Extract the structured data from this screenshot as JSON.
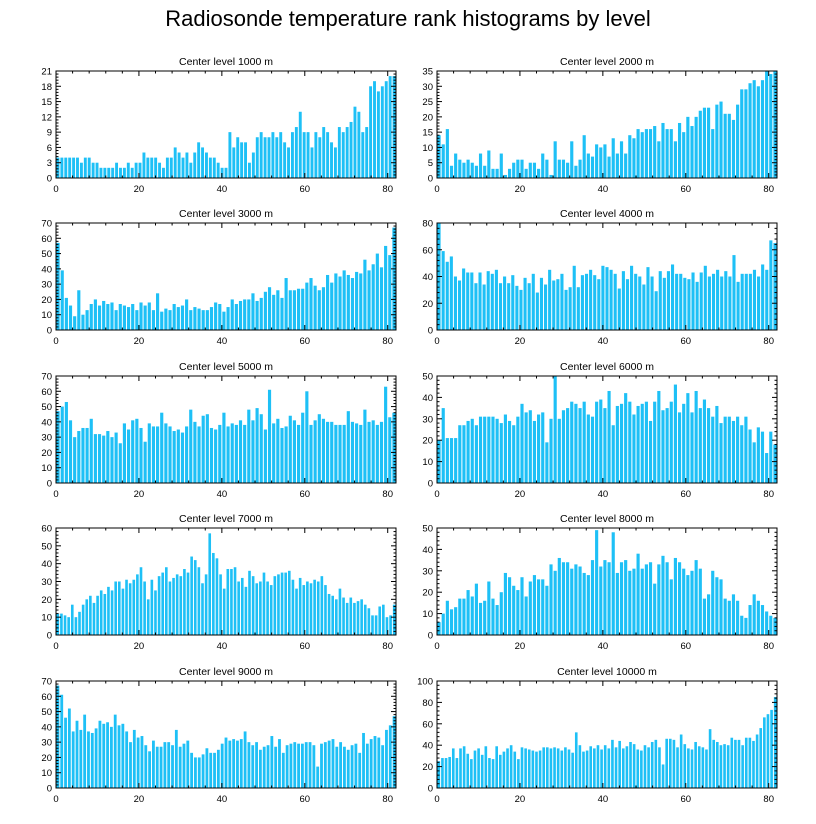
{
  "figure": {
    "title": "Radiosonde temperature rank histograms by level",
    "bar_color": "#1ec0f6",
    "frame_color": "#000000"
  },
  "chart_data": [
    {
      "type": "bar",
      "title": "Center level 1000 m",
      "xlim": [
        0,
        82
      ],
      "xticks": [
        0,
        20,
        40,
        60,
        80
      ],
      "ylim": [
        0,
        21
      ],
      "yticks": [
        0,
        3,
        6,
        9,
        12,
        15,
        18,
        21
      ],
      "values": [
        4,
        4,
        4,
        4,
        4,
        4,
        3,
        4,
        4,
        3,
        3,
        2,
        2,
        2,
        2,
        3,
        2,
        2,
        3,
        2,
        3,
        3,
        5,
        4,
        4,
        4,
        3,
        2,
        4,
        4,
        6,
        5,
        4,
        5,
        3,
        5,
        7,
        6,
        5,
        4,
        4,
        3,
        2,
        2,
        9,
        6,
        8,
        7,
        7,
        3,
        5,
        8,
        9,
        8,
        8,
        9,
        8,
        9,
        7,
        6,
        9,
        10,
        13,
        9,
        9,
        6,
        9,
        8,
        10,
        9,
        7,
        6,
        10,
        9,
        10,
        11,
        14,
        13,
        9,
        10,
        18,
        19,
        17,
        18,
        19,
        20,
        20
      ]
    },
    {
      "type": "bar",
      "title": "Center level 2000 m",
      "xlim": [
        0,
        82
      ],
      "xticks": [
        0,
        20,
        40,
        60,
        80
      ],
      "ylim": [
        0,
        35
      ],
      "yticks": [
        0,
        5,
        10,
        15,
        20,
        25,
        30,
        35
      ],
      "values": [
        14,
        11,
        16,
        4,
        8,
        6,
        5,
        6,
        5,
        4,
        8,
        4,
        9,
        3,
        3,
        8,
        1,
        3,
        5,
        6,
        6,
        3,
        5,
        5,
        3,
        8,
        6,
        1,
        12,
        6,
        6,
        5,
        12,
        4,
        6,
        14,
        8,
        7,
        11,
        10,
        11,
        7,
        13,
        8,
        12,
        8,
        14,
        13,
        16,
        15,
        16,
        16,
        17,
        12,
        18,
        16,
        16,
        12,
        18,
        15,
        20,
        17,
        20,
        22,
        23,
        23,
        16,
        24,
        25,
        21,
        21,
        19,
        24,
        29,
        29,
        31,
        32,
        30,
        32,
        35,
        34,
        35
      ]
    },
    {
      "type": "bar",
      "title": "Center level 3000 m",
      "xlim": [
        0,
        82
      ],
      "xticks": [
        0,
        20,
        40,
        60,
        80
      ],
      "ylim": [
        0,
        70
      ],
      "yticks": [
        0,
        10,
        20,
        30,
        40,
        50,
        60,
        70
      ],
      "values": [
        57,
        39,
        21,
        16,
        9,
        26,
        10,
        13,
        17,
        20,
        16,
        19,
        17,
        18,
        13,
        17,
        16,
        15,
        17,
        13,
        18,
        16,
        18,
        13,
        24,
        12,
        14,
        13,
        17,
        15,
        16,
        20,
        13,
        15,
        14,
        13,
        13,
        15,
        18,
        17,
        12,
        15,
        20,
        17,
        19,
        20,
        20,
        24,
        19,
        21,
        25,
        28,
        23,
        26,
        21,
        34,
        26,
        26,
        27,
        27,
        31,
        34,
        29,
        26,
        28,
        36,
        31,
        37,
        35,
        39,
        36,
        34,
        38,
        37,
        46,
        39,
        43,
        50,
        41,
        55,
        49,
        67
      ]
    },
    {
      "type": "bar",
      "title": "Center level 4000 m",
      "xlim": [
        0,
        82
      ],
      "xticks": [
        0,
        20,
        40,
        60,
        80
      ],
      "ylim": [
        0,
        80
      ],
      "yticks": [
        0,
        20,
        40,
        60,
        80
      ],
      "values": [
        81,
        59,
        51,
        55,
        40,
        37,
        46,
        43,
        43,
        35,
        43,
        34,
        44,
        42,
        45,
        35,
        40,
        35,
        41,
        33,
        30,
        39,
        35,
        42,
        28,
        39,
        34,
        45,
        37,
        38,
        42,
        30,
        32,
        48,
        32,
        41,
        42,
        45,
        41,
        38,
        48,
        47,
        45,
        42,
        31,
        44,
        38,
        48,
        42,
        40,
        34,
        47,
        40,
        29,
        44,
        39,
        44,
        49,
        42,
        42,
        39,
        38,
        43,
        36,
        43,
        48,
        40,
        42,
        45,
        40,
        44,
        40,
        56,
        36,
        42,
        42,
        42,
        45,
        40,
        49,
        45,
        67,
        65
      ]
    },
    {
      "type": "bar",
      "title": "Center level 5000 m",
      "xlim": [
        0,
        82
      ],
      "xticks": [
        0,
        20,
        40,
        60,
        80
      ],
      "ylim": [
        0,
        70
      ],
      "yticks": [
        0,
        10,
        20,
        30,
        40,
        50,
        60,
        70
      ],
      "values": [
        47,
        50,
        53,
        41,
        30,
        34,
        36,
        36,
        42,
        32,
        32,
        31,
        34,
        30,
        33,
        26,
        39,
        35,
        41,
        42,
        36,
        27,
        39,
        37,
        37,
        46,
        39,
        37,
        34,
        35,
        33,
        37,
        48,
        40,
        37,
        44,
        45,
        36,
        35,
        38,
        46,
        37,
        39,
        38,
        41,
        38,
        48,
        41,
        49,
        45,
        35,
        61,
        39,
        42,
        36,
        37,
        44,
        41,
        38,
        46,
        60,
        38,
        41,
        45,
        42,
        40,
        40,
        38,
        38,
        38,
        47,
        40,
        39,
        38,
        48,
        40,
        41,
        38,
        40,
        63,
        43,
        46
      ]
    },
    {
      "type": "bar",
      "title": "Center level 6000 m",
      "xlim": [
        0,
        82
      ],
      "xticks": [
        0,
        20,
        40,
        60,
        80
      ],
      "ylim": [
        0,
        50
      ],
      "yticks": [
        0,
        10,
        20,
        30,
        40,
        50
      ],
      "values": [
        20,
        35,
        21,
        21,
        21,
        27,
        27,
        29,
        30,
        27,
        31,
        31,
        31,
        31,
        30,
        28,
        32,
        29,
        27,
        31,
        37,
        33,
        34,
        29,
        32,
        33,
        19,
        30,
        50,
        30,
        34,
        35,
        38,
        37,
        35,
        38,
        32,
        31,
        38,
        39,
        35,
        43,
        27,
        36,
        37,
        42,
        38,
        32,
        36,
        37,
        38,
        29,
        38,
        43,
        34,
        35,
        38,
        46,
        33,
        37,
        42,
        33,
        43,
        35,
        39,
        35,
        31,
        36,
        28,
        31,
        31,
        29,
        31,
        27,
        31,
        25,
        19,
        26,
        24,
        14,
        24,
        18
      ]
    },
    {
      "type": "bar",
      "title": "Center level 7000 m",
      "xlim": [
        0,
        82
      ],
      "xticks": [
        0,
        20,
        40,
        60,
        80
      ],
      "ylim": [
        0,
        60
      ],
      "yticks": [
        0,
        10,
        20,
        30,
        40,
        50,
        60
      ],
      "values": [
        12,
        12,
        11,
        10,
        17,
        10,
        13,
        17,
        20,
        22,
        18,
        22,
        25,
        23,
        27,
        25,
        30,
        30,
        26,
        31,
        29,
        31,
        34,
        38,
        30,
        20,
        31,
        25,
        33,
        35,
        38,
        30,
        32,
        34,
        33,
        37,
        35,
        44,
        42,
        38,
        29,
        34,
        57,
        46,
        43,
        34,
        26,
        37,
        37,
        38,
        30,
        32,
        27,
        36,
        33,
        29,
        30,
        35,
        30,
        28,
        33,
        34,
        35,
        35,
        36,
        31,
        26,
        32,
        28,
        30,
        29,
        31,
        30,
        33,
        28,
        23,
        22,
        20,
        26,
        21,
        18,
        21,
        18,
        19,
        20,
        17,
        15,
        11,
        11,
        16,
        17,
        10,
        11,
        17
      ]
    },
    {
      "type": "bar",
      "title": "Center level 8000 m",
      "xlim": [
        0,
        82
      ],
      "xticks": [
        0,
        20,
        40,
        60,
        80
      ],
      "ylim": [
        0,
        50
      ],
      "yticks": [
        0,
        10,
        20,
        30,
        40,
        50
      ],
      "values": [
        6,
        10,
        16,
        12,
        13,
        17,
        17,
        21,
        18,
        24,
        15,
        16,
        25,
        17,
        14,
        20,
        29,
        27,
        23,
        21,
        27,
        18,
        25,
        28,
        26,
        26,
        23,
        33,
        30,
        36,
        34,
        34,
        31,
        33,
        32,
        29,
        28,
        35,
        49,
        32,
        35,
        34,
        48,
        29,
        34,
        35,
        30,
        31,
        38,
        31,
        33,
        34,
        24,
        33,
        37,
        34,
        26,
        36,
        34,
        31,
        28,
        30,
        35,
        31,
        17,
        19,
        30,
        27,
        26,
        17,
        16,
        19,
        16,
        9,
        8,
        14,
        19,
        16,
        14,
        11,
        9,
        8
      ]
    },
    {
      "type": "bar",
      "title": "Center level 9000 m",
      "xlim": [
        0,
        82
      ],
      "xticks": [
        0,
        20,
        40,
        60,
        80
      ],
      "ylim": [
        0,
        70
      ],
      "yticks": [
        0,
        10,
        20,
        30,
        40,
        50,
        60,
        70
      ],
      "values": [
        67,
        61,
        46,
        52,
        37,
        44,
        38,
        48,
        37,
        36,
        39,
        44,
        42,
        43,
        40,
        48,
        41,
        42,
        37,
        30,
        38,
        33,
        34,
        28,
        24,
        31,
        27,
        27,
        30,
        30,
        28,
        38,
        27,
        29,
        31,
        23,
        20,
        20,
        22,
        26,
        23,
        23,
        25,
        29,
        33,
        31,
        32,
        31,
        32,
        37,
        30,
        28,
        30,
        25,
        27,
        28,
        34,
        27,
        32,
        23,
        28,
        29,
        30,
        29,
        29,
        30,
        30,
        28,
        14,
        29,
        30,
        31,
        32,
        27,
        30,
        27,
        25,
        28,
        29,
        23,
        36,
        29,
        32,
        34,
        33,
        28,
        38,
        41,
        47
      ]
    },
    {
      "type": "bar",
      "title": "Center level 10000 m",
      "xlim": [
        0,
        82
      ],
      "xticks": [
        0,
        20,
        40,
        60,
        80
      ],
      "ylim": [
        0,
        100
      ],
      "yticks": [
        0,
        20,
        40,
        60,
        80,
        100
      ],
      "values": [
        25,
        28,
        28,
        29,
        37,
        28,
        37,
        39,
        32,
        27,
        35,
        37,
        31,
        39,
        28,
        27,
        39,
        31,
        34,
        37,
        40,
        34,
        27,
        38,
        37,
        36,
        35,
        34,
        35,
        38,
        38,
        37,
        38,
        37,
        35,
        38,
        36,
        33,
        52,
        40,
        34,
        35,
        39,
        37,
        40,
        36,
        40,
        37,
        45,
        38,
        44,
        37,
        39,
        43,
        41,
        36,
        35,
        40,
        38,
        43,
        45,
        38,
        22,
        46,
        46,
        45,
        38,
        50,
        41,
        37,
        36,
        43,
        39,
        38,
        36,
        55,
        45,
        43,
        40,
        41,
        40,
        47,
        45,
        45,
        40,
        47,
        47,
        44,
        50,
        56,
        66,
        69,
        73,
        85
      ]
    }
  ]
}
